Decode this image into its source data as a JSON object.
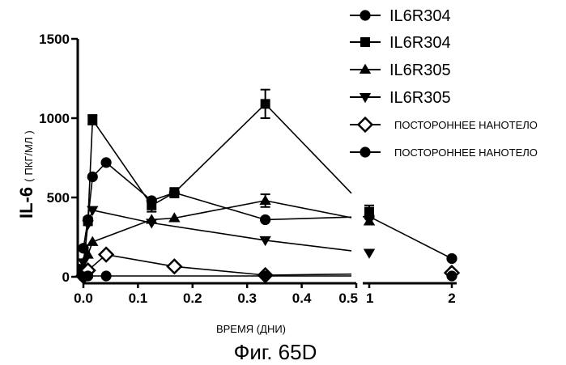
{
  "chart_data": {
    "type": "line",
    "ylabel": "IL-6",
    "ylabel_unit": "ПКГ/МЛ",
    "xlabel": "ВРЕМЯ (ДНИ)",
    "caption": "Фиг. 65D",
    "ylim": [
      0,
      1500
    ],
    "yticks": [
      {
        "v": 0,
        "label": "0"
      },
      {
        "v": 500,
        "label": "500"
      },
      {
        "v": 1000,
        "label": "1000"
      },
      {
        "v": 1500,
        "label": "1500"
      }
    ],
    "xticks": [
      {
        "v": 0.0,
        "label": "0.0"
      },
      {
        "v": 0.1,
        "label": "0.1"
      },
      {
        "v": 0.2,
        "label": "0.2"
      },
      {
        "v": 0.3,
        "label": "0.3"
      },
      {
        "v": 0.4,
        "label": "0.4"
      },
      {
        "v": 0.5,
        "label": "0.5"
      },
      {
        "v": 1,
        "label": "1"
      },
      {
        "v": 2,
        "label": "2"
      }
    ],
    "x_axis_break": [
      0.5,
      1
    ],
    "legend_position": "top-right",
    "series": [
      {
        "name": "IL6R304",
        "marker": "circle",
        "points": [
          [
            0,
            180
          ],
          [
            0.0083,
            360
          ],
          [
            0.0167,
            630
          ],
          [
            0.0417,
            720
          ],
          [
            0.125,
            480
          ],
          [
            0.1667,
            530
          ],
          [
            0.3333,
            360
          ],
          [
            1,
            380
          ],
          [
            2,
            115
          ]
        ],
        "errors": [
          0,
          0,
          0,
          0,
          0,
          0,
          0,
          0,
          0
        ]
      },
      {
        "name": "IL6R304",
        "marker": "square",
        "points": [
          [
            0,
            50
          ],
          [
            0.0083,
            350
          ],
          [
            0.0167,
            990
          ],
          [
            0.125,
            450
          ],
          [
            0.1667,
            530
          ],
          [
            0.3333,
            1090
          ],
          [
            1,
            410
          ]
        ],
        "errors": [
          0,
          0,
          30,
          40,
          30,
          90,
          40
        ]
      },
      {
        "name": "IL6R305",
        "marker": "triangle-up",
        "points": [
          [
            0,
            60
          ],
          [
            0.0083,
            140
          ],
          [
            0.0167,
            220
          ],
          [
            0.125,
            360
          ],
          [
            0.1667,
            370
          ],
          [
            0.3333,
            480
          ],
          [
            1,
            350
          ]
        ],
        "errors": [
          0,
          0,
          0,
          0,
          0,
          40,
          0
        ]
      },
      {
        "name": "IL6R305",
        "marker": "triangle-down",
        "points": [
          [
            0,
            90
          ],
          [
            0.0083,
            330
          ],
          [
            0.0167,
            420
          ],
          [
            0.125,
            340
          ],
          [
            0.3333,
            230
          ],
          [
            1,
            150
          ]
        ],
        "errors": [
          0,
          0,
          0,
          0,
          0,
          0
        ]
      },
      {
        "name": "ПОСТОРОННЕЕ НАНОТЕЛО",
        "marker": "diamond-open",
        "points": [
          [
            0,
            5
          ],
          [
            0.0083,
            40
          ],
          [
            0.0417,
            140
          ],
          [
            0.1667,
            65
          ],
          [
            0.3333,
            10
          ],
          [
            2,
            25
          ]
        ],
        "errors": [
          0,
          0,
          0,
          0,
          0,
          0
        ]
      },
      {
        "name": "ПОСТОРОННЕЕ НАНОТЕЛО",
        "marker": "circle",
        "points": [
          [
            0,
            0
          ],
          [
            0.0083,
            5
          ],
          [
            0.0417,
            5
          ],
          [
            0.3333,
            5
          ],
          [
            2,
            5
          ]
        ],
        "errors": [
          0,
          0,
          0,
          0,
          0
        ]
      }
    ]
  }
}
